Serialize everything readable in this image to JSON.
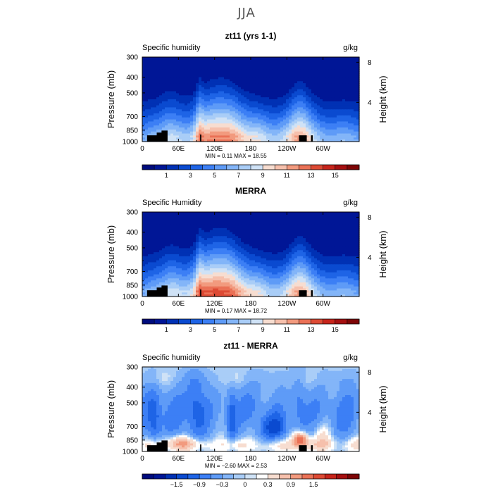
{
  "figure": {
    "title": "JJA"
  },
  "colors": {
    "full_palette": [
      "#000c7d",
      "#001696",
      "#0031b4",
      "#0a4ad0",
      "#1e64e6",
      "#3c7ff5",
      "#5e9bf7",
      "#83b5f8",
      "#a9cdf7",
      "#cfe2f6",
      "#f7ddd0",
      "#f6c0ac",
      "#f29a7e",
      "#ea7156",
      "#dd4a34",
      "#c7241b",
      "#a50f10",
      "#7e0506"
    ],
    "diff_palette": [
      "#000c7d",
      "#001696",
      "#0031b4",
      "#0a4ad0",
      "#1e64e6",
      "#3c7ff5",
      "#5e9bf7",
      "#83b5f8",
      "#a9cdf7",
      "#cfe2f6",
      "#ffffff",
      "#f7ddd0",
      "#f6c0ac",
      "#f29a7e",
      "#ea7156",
      "#dd4a34",
      "#c7241b",
      "#a50f10",
      "#7e0506"
    ],
    "topography": "#000000"
  },
  "chart_data": [
    {
      "type": "heatmap",
      "title": "zt11 (yrs 1-1)",
      "left_label": "Specific humidity",
      "right_label": "g/kg",
      "ylabel": "Pressure (mb)",
      "y2label": "Height (km)",
      "xticks": [
        "0",
        "60E",
        "120E",
        "180",
        "120W",
        "60W"
      ],
      "xtick_values": [
        0,
        60,
        120,
        180,
        240,
        300
      ],
      "xlim": [
        0,
        360
      ],
      "yticks": [
        "300",
        "400",
        "500",
        "700",
        "850",
        "1000"
      ],
      "ytick_values": [
        300,
        400,
        500,
        700,
        850,
        1000
      ],
      "ylim": [
        300,
        1000
      ],
      "y_scale": "log",
      "y2ticks": [
        "8",
        "4"
      ],
      "y2tick_values": [
        8,
        4
      ],
      "stats": "MIN =     0.11   MAX =    18.55",
      "min": 0.11,
      "max": 18.55,
      "colorbar_labels": [
        "1",
        "3",
        "5",
        "7",
        "9",
        "11",
        "13",
        "15"
      ],
      "colorbar_values": [
        1,
        3,
        5,
        7,
        9,
        11,
        13,
        15
      ],
      "levels": [
        0,
        1,
        2,
        3,
        4,
        5,
        6,
        7,
        8,
        9,
        10,
        11,
        12,
        13,
        14,
        15,
        16,
        17
      ]
    },
    {
      "type": "heatmap",
      "title": "MERRA",
      "left_label": "Specific Humidity",
      "right_label": "g/kg",
      "ylabel": "Pressure (mb)",
      "y2label": "Height (km)",
      "xticks": [
        "0",
        "60E",
        "120E",
        "180",
        "120W",
        "60W"
      ],
      "xtick_values": [
        0,
        60,
        120,
        180,
        240,
        300
      ],
      "xlim": [
        0,
        360
      ],
      "yticks": [
        "300",
        "400",
        "500",
        "700",
        "850",
        "1000"
      ],
      "ytick_values": [
        300,
        400,
        500,
        700,
        850,
        1000
      ],
      "ylim": [
        300,
        1000
      ],
      "y_scale": "log",
      "y2ticks": [
        "8",
        "4"
      ],
      "y2tick_values": [
        8,
        4
      ],
      "stats": "MIN =     0.17   MAX =    18.72",
      "min": 0.17,
      "max": 18.72,
      "colorbar_labels": [
        "1",
        "3",
        "5",
        "7",
        "9",
        "11",
        "13",
        "15"
      ],
      "colorbar_values": [
        1,
        3,
        5,
        7,
        9,
        11,
        13,
        15
      ],
      "levels": [
        0,
        1,
        2,
        3,
        4,
        5,
        6,
        7,
        8,
        9,
        10,
        11,
        12,
        13,
        14,
        15,
        16,
        17
      ]
    },
    {
      "type": "heatmap",
      "title": "zt11 - MERRA",
      "left_label": "Specific humidity",
      "right_label": "g/kg",
      "ylabel": "Pressure (mb)",
      "y2label": "Height (km)",
      "xticks": [
        "0",
        "60E",
        "120E",
        "180",
        "120W",
        "60W"
      ],
      "xtick_values": [
        0,
        60,
        120,
        180,
        240,
        300
      ],
      "xlim": [
        0,
        360
      ],
      "yticks": [
        "300",
        "400",
        "500",
        "700",
        "850",
        "1000"
      ],
      "ytick_values": [
        300,
        400,
        500,
        700,
        850,
        1000
      ],
      "ylim": [
        300,
        1000
      ],
      "y_scale": "log",
      "y2ticks": [
        "8",
        "4"
      ],
      "y2tick_values": [
        8,
        4
      ],
      "stats": "MIN =   −2.60   MAX =     2.53",
      "min": -2.6,
      "max": 2.53,
      "colorbar_labels": [
        "−1.5",
        "−0.9",
        "−0.3",
        "0",
        "0.3",
        "0.9",
        "1.5"
      ],
      "colorbar_values": [
        -1.5,
        -0.9,
        -0.3,
        0,
        0.3,
        0.9,
        1.5
      ],
      "levels": [
        -2.1,
        -1.8,
        -1.5,
        -1.2,
        -0.9,
        -0.6,
        -0.3,
        -0.1,
        0,
        0.1,
        0.3,
        0.6,
        0.9,
        1.2,
        1.5,
        1.8,
        2.1,
        2.4
      ]
    }
  ]
}
